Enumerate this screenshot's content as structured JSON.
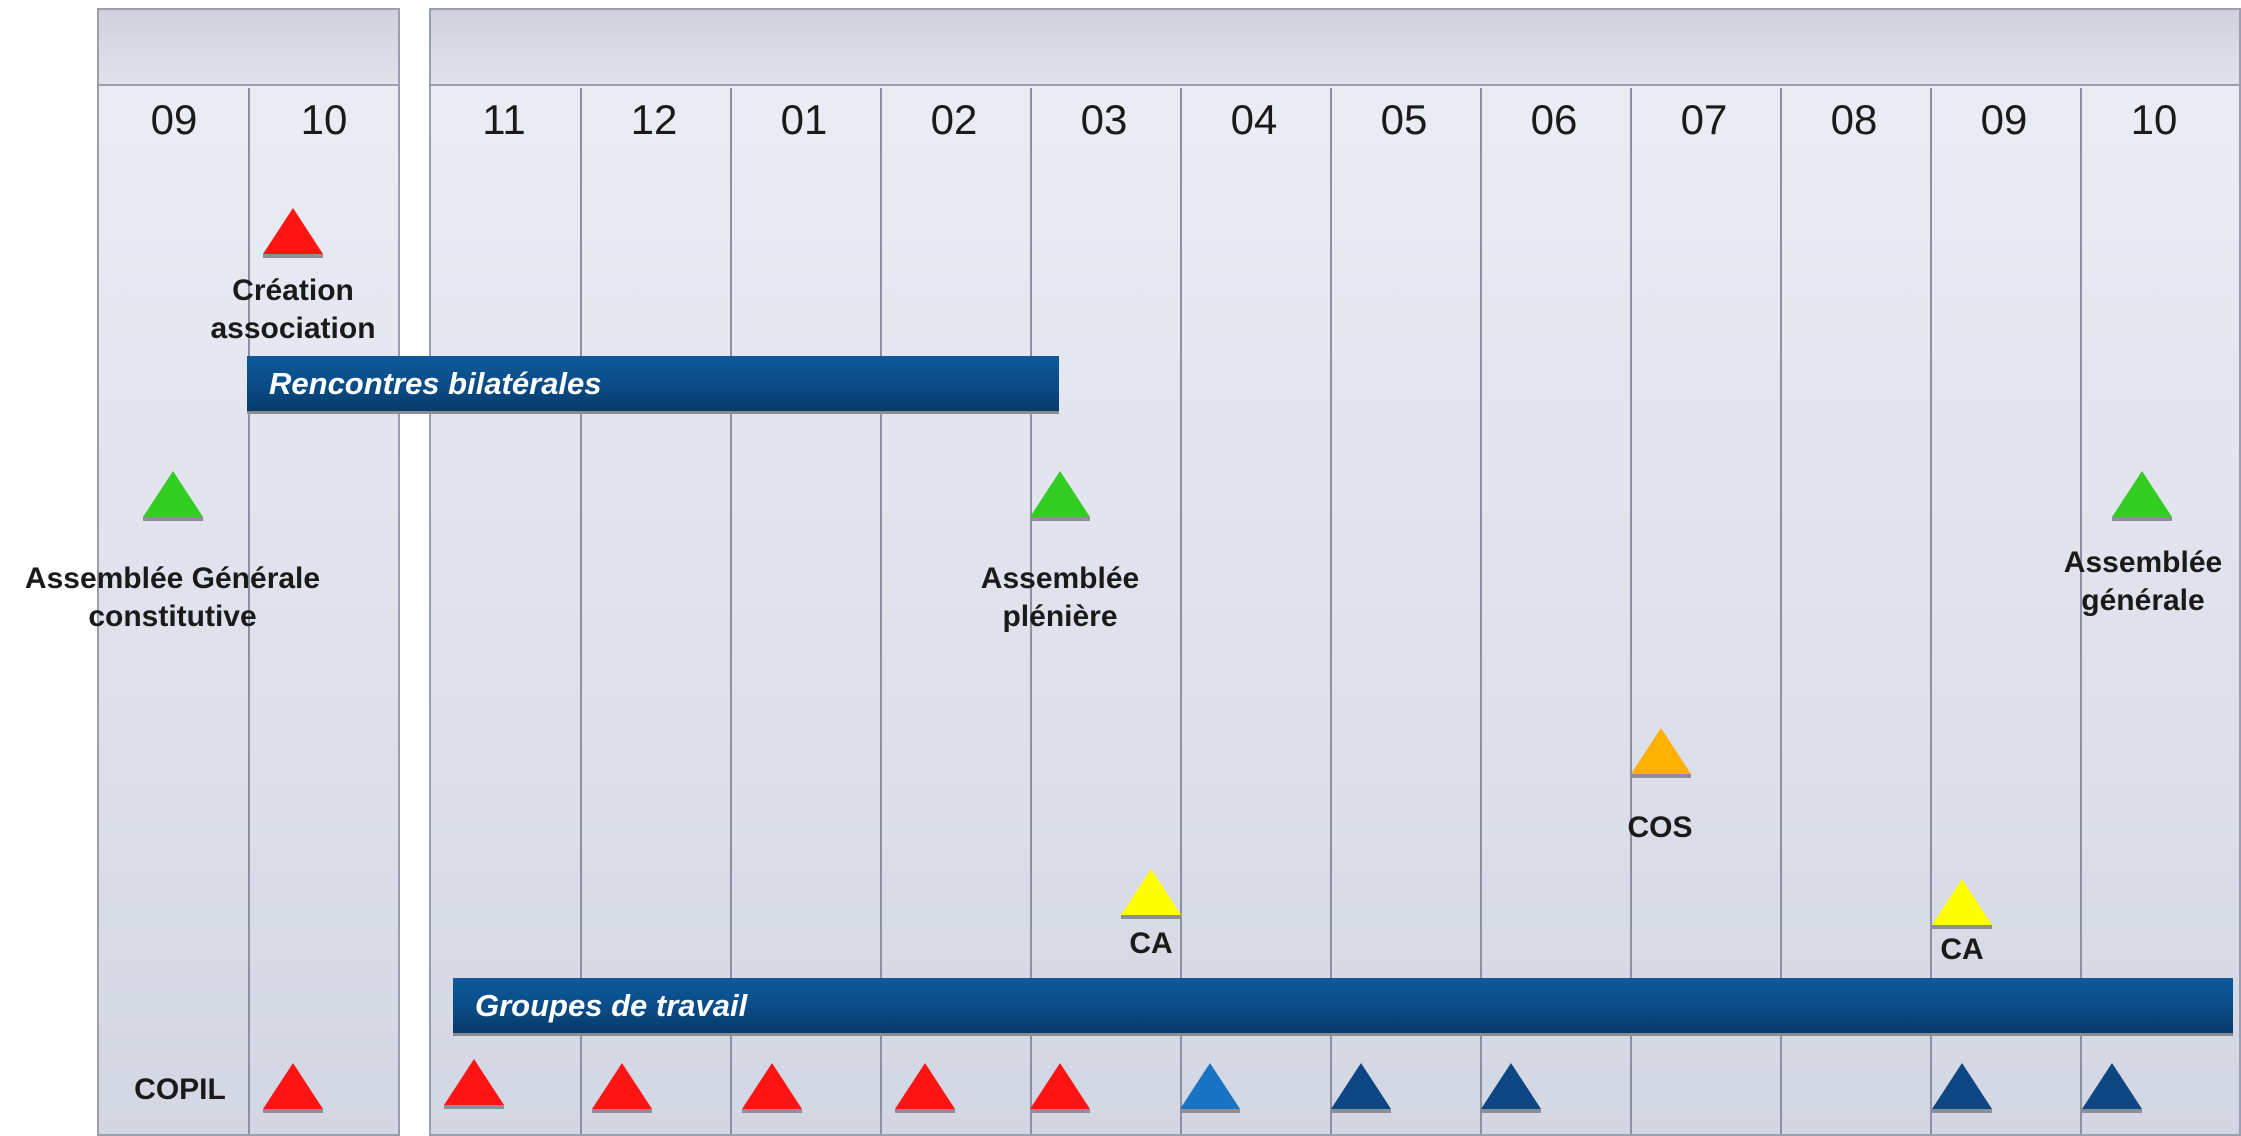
{
  "months_left": [
    "09",
    "10"
  ],
  "months_right": [
    "11",
    "12",
    "01",
    "02",
    "03",
    "04",
    "05",
    "06",
    "07",
    "08",
    "09",
    "10"
  ],
  "bars": {
    "rencontres": "Rencontres bilatérales",
    "groupes": "Groupes de travail"
  },
  "milestones": {
    "creation": {
      "line1": "Création",
      "line2": "association"
    },
    "ag_constitutive": {
      "line1": "Assemblée Générale",
      "line2": "constitutive"
    },
    "assemblee_pleniere": {
      "line1": "Assemblée",
      "line2": "plénière"
    },
    "ag_finale": {
      "line1": "Assemblée",
      "line2": "générale"
    },
    "cos": "COS",
    "ca_1": "CA",
    "ca_2": "CA",
    "copil": "COPIL"
  },
  "colors": {
    "red": "#ff1414",
    "green": "#33cc22",
    "orange": "#ffb000",
    "yellow": "#ffff00",
    "blue": "#1a72c2",
    "navy": "#0d4683",
    "bar": "#0a4a84"
  }
}
